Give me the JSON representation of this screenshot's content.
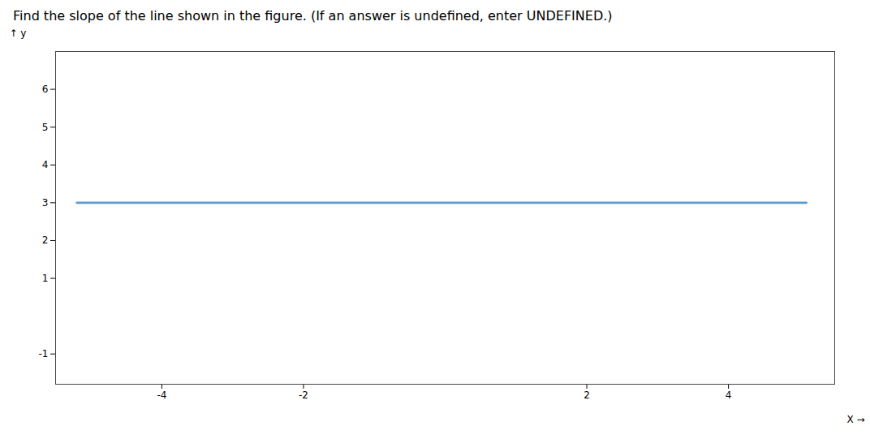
{
  "chart_data": {
    "type": "line",
    "title": "Find the slope of the line shown in the figure. (If an answer is undefined, enter UNDEFINED.)",
    "x": [
      -5.2,
      5.1
    ],
    "values": [
      3,
      3
    ],
    "color": "#5b9bd5",
    "xlabel": "X",
    "ylabel": "y",
    "xlim": [
      -5.5,
      5.5
    ],
    "ylim": [
      -1.8,
      7.0
    ],
    "xticks": [
      -4,
      -2,
      2,
      4
    ],
    "yticks": [
      -1,
      1,
      2,
      3,
      4,
      5,
      6
    ],
    "grid": false
  }
}
